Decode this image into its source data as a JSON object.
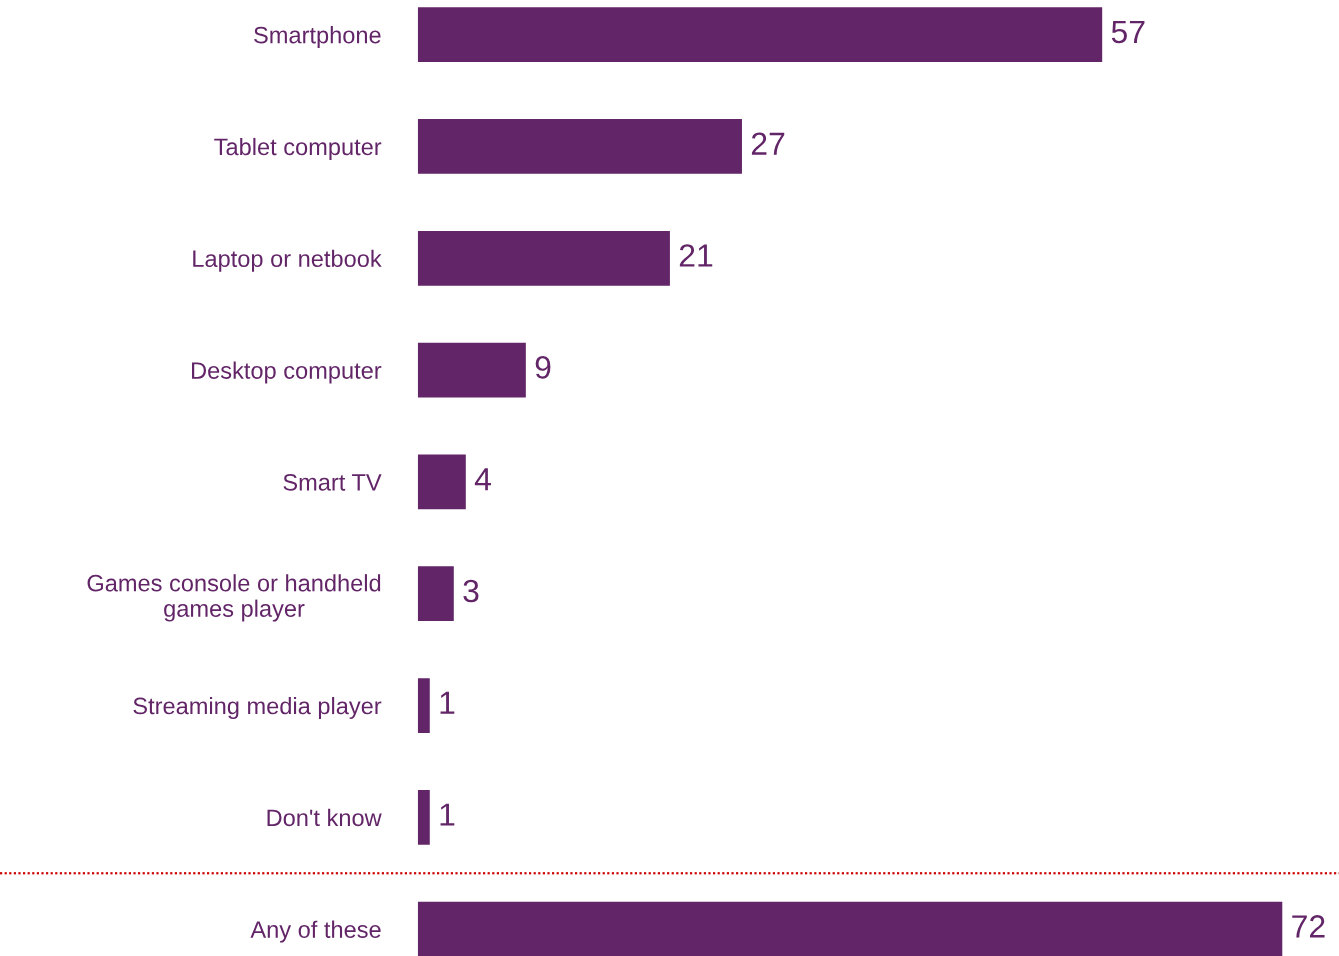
{
  "chart_data": {
    "type": "bar",
    "orientation": "horizontal",
    "categories": [
      "Smartphone",
      "Tablet computer",
      "Laptop or netbook",
      "Desktop computer",
      "Smart TV",
      "Games console or handheld\ngames player",
      "Streaming media player",
      "Don't know",
      "Any of these"
    ],
    "values": [
      57,
      27,
      21,
      9,
      4,
      3,
      1,
      1,
      72
    ],
    "color": "#622567",
    "data_labels": true,
    "xlim": [
      0,
      76.5
    ],
    "tick_labels": "y",
    "grid": false
  }
}
